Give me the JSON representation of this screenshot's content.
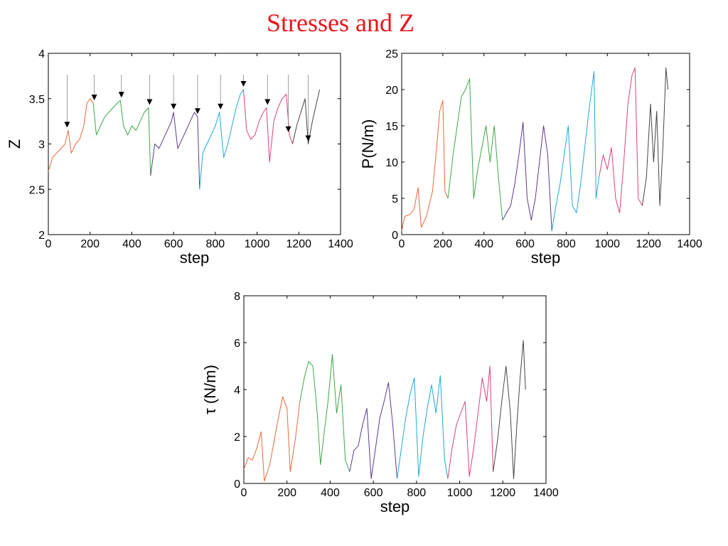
{
  "slide": {
    "title": "Stresses and Z"
  },
  "colors": {
    "segments": [
      "#e8683a",
      "#3aa845",
      "#5a3a8f",
      "#1ea8d8",
      "#d8407f",
      "#444444"
    ]
  },
  "chart_data": [
    {
      "id": "z",
      "type": "line",
      "xlabel": "step",
      "ylabel": "Z",
      "xlim": [
        0,
        1400
      ],
      "ylim": [
        2,
        4
      ],
      "xticks": [
        0,
        200,
        400,
        600,
        800,
        1000,
        1200,
        1400
      ],
      "xtick_labels": [
        "0",
        "200",
        "400",
        "600",
        "800",
        "1000",
        "1200",
        "1400"
      ],
      "yticks": [
        2,
        2.5,
        3,
        3.5,
        4
      ],
      "ytick_labels": [
        "2",
        "2.5",
        "3",
        "3.5",
        "4"
      ],
      "series": [
        {
          "segment": 0,
          "points": [
            [
              0,
              2.7
            ],
            [
              20,
              2.85
            ],
            [
              40,
              2.9
            ],
            [
              60,
              2.95
            ],
            [
              80,
              3.0
            ],
            [
              95,
              3.15
            ],
            [
              110,
              2.9
            ],
            [
              130,
              3.0
            ],
            [
              150,
              3.05
            ],
            [
              170,
              3.2
            ],
            [
              185,
              3.45
            ],
            [
              200,
              3.5
            ],
            [
              215,
              3.45
            ]
          ]
        },
        {
          "segment": 1,
          "points": [
            [
              215,
              3.45
            ],
            [
              230,
              3.1
            ],
            [
              250,
              3.2
            ],
            [
              270,
              3.3
            ],
            [
              290,
              3.35
            ],
            [
              310,
              3.4
            ],
            [
              330,
              3.45
            ],
            [
              345,
              3.48
            ],
            [
              360,
              3.2
            ],
            [
              380,
              3.1
            ],
            [
              400,
              3.2
            ],
            [
              420,
              3.15
            ],
            [
              440,
              3.25
            ],
            [
              460,
              3.35
            ],
            [
              480,
              3.4
            ],
            [
              490,
              2.65
            ]
          ]
        },
        {
          "segment": 2,
          "points": [
            [
              490,
              2.65
            ],
            [
              510,
              3.0
            ],
            [
              530,
              2.95
            ],
            [
              550,
              3.05
            ],
            [
              570,
              3.15
            ],
            [
              590,
              3.25
            ],
            [
              600,
              3.35
            ],
            [
              620,
              2.95
            ],
            [
              640,
              3.05
            ],
            [
              660,
              3.15
            ],
            [
              680,
              3.25
            ],
            [
              700,
              3.35
            ],
            [
              715,
              3.3
            ],
            [
              725,
              2.5
            ]
          ]
        },
        {
          "segment": 3,
          "points": [
            [
              725,
              2.5
            ],
            [
              740,
              2.9
            ],
            [
              760,
              3.0
            ],
            [
              780,
              3.1
            ],
            [
              800,
              3.2
            ],
            [
              820,
              3.35
            ],
            [
              840,
              2.85
            ],
            [
              860,
              3.0
            ],
            [
              880,
              3.2
            ],
            [
              900,
              3.4
            ],
            [
              920,
              3.55
            ],
            [
              935,
              3.6
            ]
          ]
        },
        {
          "segment": 4,
          "points": [
            [
              935,
              3.6
            ],
            [
              950,
              3.15
            ],
            [
              970,
              3.05
            ],
            [
              990,
              3.1
            ],
            [
              1010,
              3.25
            ],
            [
              1030,
              3.35
            ],
            [
              1045,
              3.4
            ],
            [
              1060,
              2.8
            ],
            [
              1080,
              3.25
            ],
            [
              1100,
              3.4
            ],
            [
              1120,
              3.5
            ],
            [
              1140,
              3.55
            ],
            [
              1155,
              3.1
            ],
            [
              1170,
              3.0
            ]
          ]
        },
        {
          "segment": 5,
          "points": [
            [
              1170,
              3.0
            ],
            [
              1190,
              3.2
            ],
            [
              1210,
              3.35
            ],
            [
              1230,
              3.5
            ],
            [
              1245,
              3.0
            ],
            [
              1265,
              3.25
            ],
            [
              1285,
              3.45
            ],
            [
              1300,
              3.6
            ]
          ]
        }
      ],
      "arrows_x": [
        90,
        220,
        350,
        485,
        600,
        715,
        825,
        935,
        1050,
        1150,
        1245
      ]
    },
    {
      "id": "pressure",
      "type": "line",
      "xlabel": "step",
      "ylabel": "P(N/m)",
      "xlim": [
        0,
        1400
      ],
      "ylim": [
        0,
        25
      ],
      "xticks": [
        0,
        200,
        400,
        600,
        800,
        1000,
        1200,
        1400
      ],
      "xtick_labels": [
        "0",
        "200",
        "400",
        "600",
        "800",
        "1000",
        "1200",
        "1400"
      ],
      "yticks": [
        0,
        5,
        10,
        15,
        20,
        25
      ],
      "ytick_labels": [
        "0",
        "5",
        "10",
        "15",
        "20",
        "25"
      ],
      "series": [
        {
          "segment": 0,
          "points": [
            [
              0,
              0.5
            ],
            [
              15,
              2.5
            ],
            [
              40,
              2.8
            ],
            [
              60,
              3.5
            ],
            [
              80,
              6.5
            ],
            [
              95,
              1.0
            ],
            [
              120,
              2.5
            ],
            [
              150,
              6
            ],
            [
              170,
              12
            ],
            [
              185,
              17
            ],
            [
              200,
              18.5
            ],
            [
              210,
              6
            ],
            [
              225,
              5
            ]
          ]
        },
        {
          "segment": 1,
          "points": [
            [
              225,
              5
            ],
            [
              250,
              11
            ],
            [
              270,
              15
            ],
            [
              290,
              19
            ],
            [
              310,
              20
            ],
            [
              330,
              21.5
            ],
            [
              350,
              5
            ],
            [
              370,
              9
            ],
            [
              390,
              12
            ],
            [
              410,
              15
            ],
            [
              430,
              10
            ],
            [
              450,
              15
            ],
            [
              470,
              8
            ],
            [
              490,
              2
            ]
          ]
        },
        {
          "segment": 2,
          "points": [
            [
              490,
              2
            ],
            [
              510,
              3
            ],
            [
              530,
              4
            ],
            [
              550,
              7
            ],
            [
              570,
              11
            ],
            [
              590,
              15.5
            ],
            [
              610,
              5
            ],
            [
              630,
              2
            ],
            [
              650,
              5
            ],
            [
              670,
              10
            ],
            [
              690,
              15
            ],
            [
              710,
              11
            ],
            [
              730,
              0.5
            ]
          ]
        },
        {
          "segment": 3,
          "points": [
            [
              730,
              0.5
            ],
            [
              750,
              4
            ],
            [
              770,
              7
            ],
            [
              790,
              11
            ],
            [
              810,
              15
            ],
            [
              830,
              4
            ],
            [
              850,
              3
            ],
            [
              870,
              7
            ],
            [
              890,
              12
            ],
            [
              910,
              17
            ],
            [
              935,
              22.5
            ],
            [
              945,
              5
            ],
            [
              960,
              8
            ]
          ]
        },
        {
          "segment": 4,
          "points": [
            [
              960,
              8
            ],
            [
              980,
              11
            ],
            [
              1000,
              9
            ],
            [
              1020,
              12
            ],
            [
              1040,
              5
            ],
            [
              1060,
              3
            ],
            [
              1080,
              10
            ],
            [
              1100,
              18
            ],
            [
              1120,
              22
            ],
            [
              1135,
              23
            ],
            [
              1150,
              5
            ],
            [
              1170,
              4
            ]
          ]
        },
        {
          "segment": 5,
          "points": [
            [
              1170,
              4
            ],
            [
              1190,
              8
            ],
            [
              1210,
              18
            ],
            [
              1225,
              10
            ],
            [
              1240,
              17
            ],
            [
              1255,
              4
            ],
            [
              1270,
              12
            ],
            [
              1285,
              23
            ],
            [
              1295,
              20
            ]
          ]
        }
      ]
    },
    {
      "id": "shear",
      "type": "line",
      "xlabel": "step",
      "ylabel": "τ (N/m)",
      "xlim": [
        0,
        1400
      ],
      "ylim": [
        0,
        8
      ],
      "xticks": [
        0,
        200,
        400,
        600,
        800,
        1000,
        1200,
        1400
      ],
      "xtick_labels": [
        "0",
        "200",
        "400",
        "600",
        "800",
        "1000",
        "1200",
        "1400"
      ],
      "yticks": [
        0,
        2,
        4,
        6,
        8
      ],
      "ytick_labels": [
        "0",
        "2",
        "4",
        "6",
        "8"
      ],
      "series": [
        {
          "segment": 0,
          "points": [
            [
              0,
              0.6
            ],
            [
              20,
              1.1
            ],
            [
              40,
              1.0
            ],
            [
              60,
              1.5
            ],
            [
              80,
              2.2
            ],
            [
              95,
              0.1
            ],
            [
              120,
              0.8
            ],
            [
              140,
              1.8
            ],
            [
              160,
              2.8
            ],
            [
              180,
              3.7
            ],
            [
              200,
              3.2
            ],
            [
              215,
              0.5
            ],
            [
              240,
              2.0
            ],
            [
              260,
              3.5
            ]
          ]
        },
        {
          "segment": 1,
          "points": [
            [
              260,
              3.5
            ],
            [
              280,
              4.5
            ],
            [
              300,
              5.2
            ],
            [
              320,
              5.0
            ],
            [
              340,
              3.0
            ],
            [
              355,
              0.8
            ],
            [
              370,
              2.0
            ],
            [
              390,
              3.5
            ],
            [
              410,
              5.5
            ],
            [
              430,
              3.0
            ],
            [
              450,
              4.2
            ],
            [
              470,
              1.0
            ],
            [
              490,
              0.5
            ]
          ]
        },
        {
          "segment": 2,
          "points": [
            [
              490,
              0.5
            ],
            [
              510,
              1.4
            ],
            [
              530,
              1.6
            ],
            [
              550,
              2.5
            ],
            [
              570,
              3.2
            ],
            [
              590,
              0.2
            ],
            [
              610,
              1.5
            ],
            [
              630,
              2.8
            ],
            [
              650,
              3.5
            ],
            [
              670,
              4.3
            ],
            [
              690,
              2.5
            ],
            [
              710,
              0.2
            ]
          ]
        },
        {
          "segment": 3,
          "points": [
            [
              710,
              0.2
            ],
            [
              730,
              1.5
            ],
            [
              750,
              2.8
            ],
            [
              770,
              3.8
            ],
            [
              790,
              4.5
            ],
            [
              810,
              0.3
            ],
            [
              830,
              2.0
            ],
            [
              850,
              3.2
            ],
            [
              870,
              4.2
            ],
            [
              890,
              3.0
            ],
            [
              910,
              4.6
            ],
            [
              930,
              1.0
            ],
            [
              945,
              0.2
            ]
          ]
        },
        {
          "segment": 4,
          "points": [
            [
              945,
              0.2
            ],
            [
              965,
              1.5
            ],
            [
              985,
              2.5
            ],
            [
              1005,
              3.0
            ],
            [
              1025,
              3.5
            ],
            [
              1045,
              0.3
            ],
            [
              1065,
              1.5
            ],
            [
              1085,
              3.0
            ],
            [
              1105,
              4.5
            ],
            [
              1125,
              3.5
            ],
            [
              1140,
              5.0
            ],
            [
              1155,
              0.5
            ]
          ]
        },
        {
          "segment": 5,
          "points": [
            [
              1155,
              0.5
            ],
            [
              1175,
              1.8
            ],
            [
              1195,
              3.5
            ],
            [
              1215,
              5.0
            ],
            [
              1235,
              3.0
            ],
            [
              1250,
              0.2
            ],
            [
              1265,
              2.5
            ],
            [
              1280,
              4.5
            ],
            [
              1295,
              6.1
            ],
            [
              1305,
              4.0
            ]
          ]
        }
      ]
    }
  ]
}
